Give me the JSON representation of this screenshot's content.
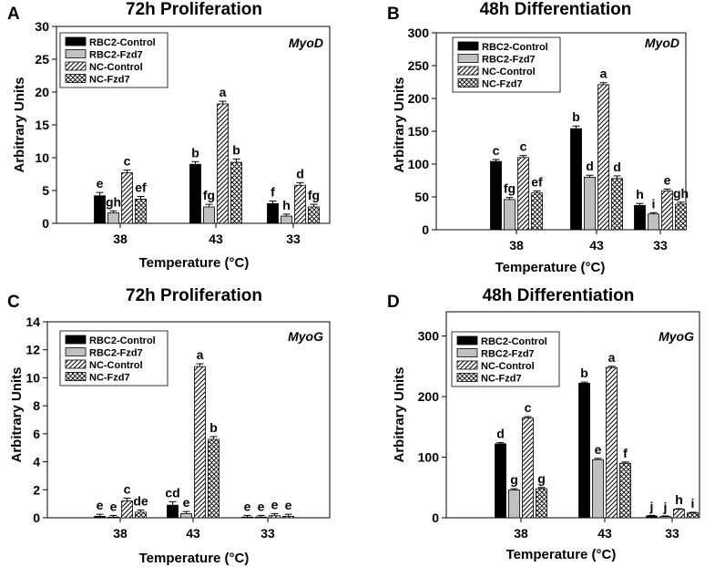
{
  "chart_data": [
    {
      "panel": "A",
      "type": "bar",
      "title": "72h Proliferation",
      "gene": "MyoD",
      "xlabel": "Temperature (°C)",
      "ylabel": "Arbitrary Units",
      "ylim": [
        0,
        30
      ],
      "yticks": [
        0,
        5,
        10,
        15,
        20,
        25,
        30
      ],
      "categories": [
        "38",
        "43",
        "33"
      ],
      "legend_position": "top-left",
      "series": [
        {
          "name": "RBC2-Control",
          "pattern": "solid",
          "values": [
            4.2,
            9.0,
            3.0
          ],
          "errors": [
            0.5,
            0.4,
            0.4
          ],
          "letters": [
            "e",
            "b",
            "f"
          ]
        },
        {
          "name": "RBC2-Fzd7",
          "pattern": "gray",
          "values": [
            1.6,
            2.5,
            1.1
          ],
          "errors": [
            0.3,
            0.4,
            0.3
          ],
          "letters": [
            "gh",
            "fg",
            "h"
          ]
        },
        {
          "name": "NC-Control",
          "pattern": "hatch",
          "values": [
            7.7,
            18.2,
            5.8
          ],
          "errors": [
            0.4,
            0.4,
            0.4
          ],
          "letters": [
            "c",
            "a",
            "d"
          ]
        },
        {
          "name": "NC-Fzd7",
          "pattern": "crosshatch",
          "values": [
            3.7,
            9.3,
            2.5
          ],
          "errors": [
            0.4,
            0.5,
            0.4
          ],
          "letters": [
            "ef",
            "b",
            "fg"
          ]
        }
      ]
    },
    {
      "panel": "B",
      "type": "bar",
      "title": "48h Differentiation",
      "gene": "MyoD",
      "xlabel": "Temperature (°C)",
      "ylabel": "Arbitrary Units",
      "ylim": [
        0,
        300
      ],
      "yticks": [
        0,
        50,
        100,
        150,
        200,
        250,
        300
      ],
      "categories": [
        "38",
        "43",
        "33"
      ],
      "legend_position": "top-left",
      "series": [
        {
          "name": "RBC2-Control",
          "pattern": "solid",
          "values": [
            104,
            154,
            37
          ],
          "errors": [
            3,
            4,
            3
          ],
          "letters": [
            "c",
            "b",
            "h"
          ]
        },
        {
          "name": "RBC2-Fzd7",
          "pattern": "gray",
          "values": [
            46,
            80,
            24
          ],
          "errors": [
            3,
            3,
            2
          ],
          "letters": [
            "fg",
            "d",
            "i"
          ]
        },
        {
          "name": "NC-Control",
          "pattern": "hatch",
          "values": [
            110,
            221,
            59
          ],
          "errors": [
            3,
            3,
            3
          ],
          "letters": [
            "c",
            "a",
            "e"
          ]
        },
        {
          "name": "NC-Fzd7",
          "pattern": "crosshatch",
          "values": [
            56,
            78,
            39
          ],
          "errors": [
            3,
            4,
            3
          ],
          "letters": [
            "ef",
            "d",
            "gh"
          ]
        }
      ]
    },
    {
      "panel": "C",
      "type": "bar",
      "title": "72h Proliferation",
      "gene": "MyoG",
      "xlabel": "Temperature (°C)",
      "ylabel": "Arbitrary Units",
      "ylim": [
        0,
        14
      ],
      "yticks": [
        0,
        2,
        4,
        6,
        8,
        10,
        12,
        14
      ],
      "categories": [
        "38",
        "43",
        "33"
      ],
      "legend_position": "top-left",
      "series": [
        {
          "name": "RBC2-Control",
          "pattern": "solid",
          "values": [
            0.1,
            0.9,
            0.05
          ],
          "errors": [
            0.15,
            0.25,
            0.12
          ],
          "letters": [
            "e",
            "cd",
            "e"
          ]
        },
        {
          "name": "RBC2-Fzd7",
          "pattern": "gray",
          "values": [
            0.05,
            0.3,
            0.05
          ],
          "errors": [
            0.12,
            0.15,
            0.12
          ],
          "letters": [
            "e",
            "e",
            "e"
          ]
        },
        {
          "name": "NC-Control",
          "pattern": "hatch",
          "values": [
            1.2,
            10.8,
            0.15
          ],
          "errors": [
            0.2,
            0.2,
            0.15
          ],
          "letters": [
            "c",
            "a",
            "e"
          ]
        },
        {
          "name": "NC-Fzd7",
          "pattern": "crosshatch",
          "values": [
            0.4,
            5.6,
            0.1
          ],
          "errors": [
            0.15,
            0.2,
            0.15
          ],
          "letters": [
            "de",
            "b",
            "e"
          ]
        }
      ]
    },
    {
      "panel": "D",
      "type": "bar",
      "title": "48h Differentiation",
      "gene": "MyoG",
      "xlabel": "Temperature (°C)",
      "ylabel": "Arbitrary Units",
      "ylim": [
        0,
        340
      ],
      "yticks": [
        0,
        100,
        200,
        300
      ],
      "categories": [
        "38",
        "43",
        "33"
      ],
      "legend_position": "top-left",
      "series": [
        {
          "name": "RBC2-Control",
          "pattern": "solid",
          "values": [
            122,
            222,
            3
          ],
          "errors": [
            2,
            2,
            1
          ],
          "letters": [
            "d",
            "b",
            "j"
          ]
        },
        {
          "name": "RBC2-Fzd7",
          "pattern": "gray",
          "values": [
            46,
            96,
            2
          ],
          "errors": [
            2,
            2,
            1
          ],
          "letters": [
            "g",
            "e",
            "j"
          ]
        },
        {
          "name": "NC-Control",
          "pattern": "hatch",
          "values": [
            165,
            248,
            14
          ],
          "errors": [
            2,
            2,
            1
          ],
          "letters": [
            "c",
            "a",
            "h"
          ]
        },
        {
          "name": "NC-Fzd7",
          "pattern": "crosshatch",
          "values": [
            48,
            90,
            8
          ],
          "errors": [
            2,
            2,
            1
          ],
          "letters": [
            "g",
            "f",
            "i"
          ]
        }
      ]
    }
  ]
}
